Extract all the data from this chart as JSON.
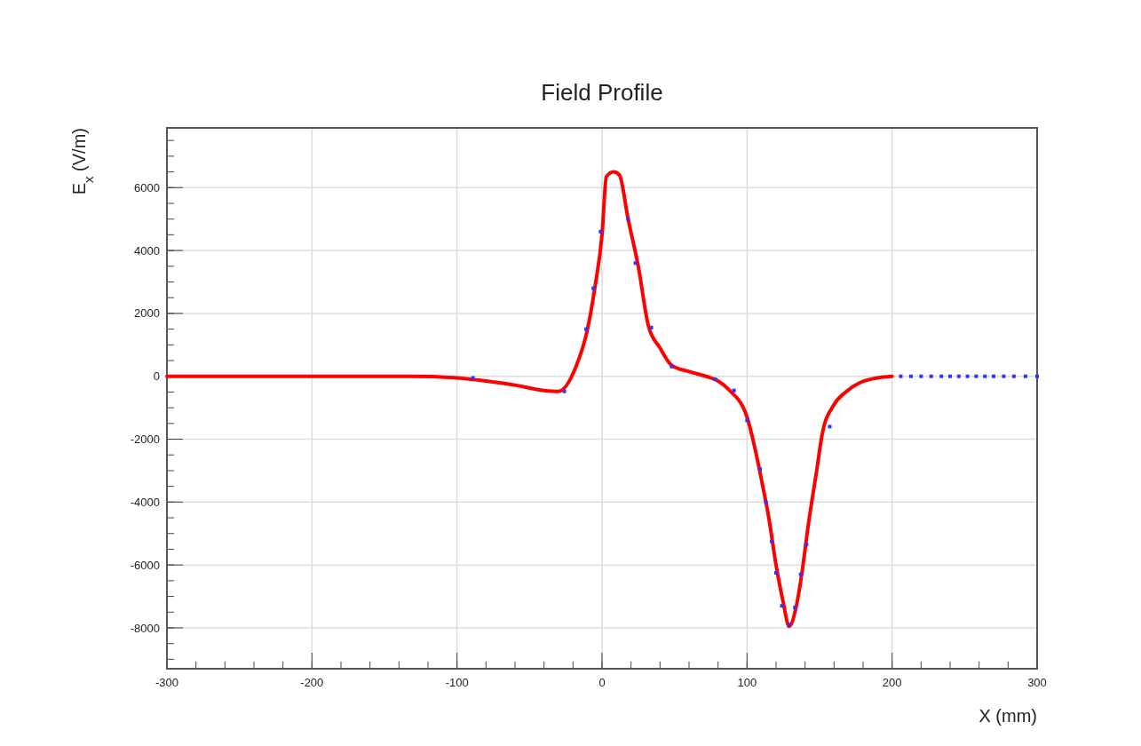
{
  "chart_data": {
    "type": "line",
    "title": "Field Profile",
    "xlabel": "X (mm)",
    "ylabel": "E$_{x}$ (V/m)",
    "xlim": [
      -300,
      300
    ],
    "xticks": [
      -300,
      -200,
      -100,
      0,
      100,
      200,
      300
    ],
    "ylim": [
      -9300,
      7900
    ],
    "yticks": [
      -8000,
      -6000,
      -4000,
      -2000,
      0,
      2000,
      4000,
      6000
    ],
    "grid": true,
    "series": [
      {
        "marker": "none",
        "color": "#ff0000",
        "x": [
          -300,
          -200,
          -130,
          -100,
          -80,
          -60,
          -40,
          -30,
          -18,
          -10,
          -5,
          0,
          3,
          8,
          12,
          18,
          25,
          32,
          40,
          48,
          60,
          75,
          80,
          88,
          100,
          105,
          110,
          115,
          120,
          125,
          129,
          134,
          138,
          142,
          148,
          152,
          160,
          168,
          178,
          190,
          200
        ],
        "values": [
          0,
          0,
          0,
          -50,
          -150,
          -280,
          -450,
          -480,
          300,
          1500,
          2800,
          4500,
          6350,
          6500,
          6400,
          5000,
          3500,
          1600,
          900,
          350,
          150,
          -50,
          -150,
          -450,
          -1300,
          -2200,
          -3300,
          -4500,
          -6000,
          -7200,
          -7950,
          -7300,
          -6200,
          -4800,
          -3000,
          -1800,
          -900,
          -500,
          -200,
          -50,
          0
        ]
      },
      {
        "type": "scatter",
        "marker": "square",
        "color": "#3333ff",
        "x": [
          -89,
          -26,
          -11,
          -6,
          -1,
          18,
          23,
          34,
          48,
          78,
          91,
          100,
          109,
          113,
          117,
          120,
          124,
          129,
          133,
          137,
          141,
          157,
          206,
          213,
          220,
          227,
          234,
          240,
          246,
          252,
          258,
          264,
          270,
          277,
          284,
          292,
          300
        ],
        "values": [
          -50,
          -480,
          1500,
          2800,
          4600,
          5000,
          3600,
          1550,
          310,
          -90,
          -450,
          -1400,
          -2950,
          -4000,
          -5250,
          -6250,
          -7300,
          -7900,
          -7350,
          -6300,
          -5350,
          -1600,
          0,
          0,
          0,
          0,
          0,
          0,
          0,
          0,
          0,
          0,
          0,
          0,
          0,
          0,
          0
        ]
      }
    ]
  }
}
